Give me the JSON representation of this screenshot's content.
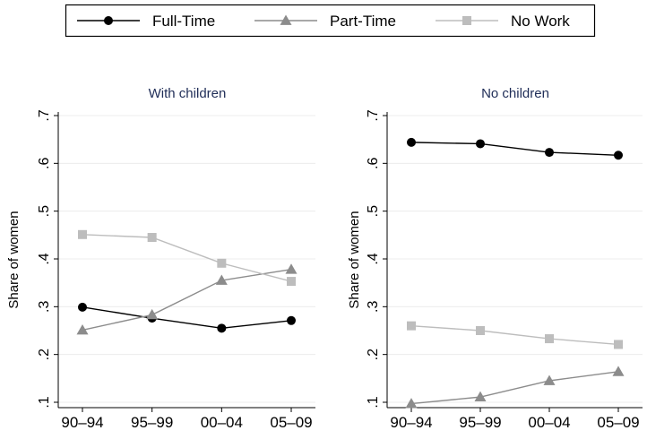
{
  "legend": {
    "items": [
      {
        "label": "Full-Time",
        "color": "#000000",
        "marker": "circle"
      },
      {
        "label": "Part-Time",
        "color": "#8c8c8c",
        "marker": "triangle"
      },
      {
        "label": "No Work",
        "color": "#bdbdbd",
        "marker": "square"
      }
    ]
  },
  "chart_data": [
    {
      "type": "line",
      "title": "With children",
      "ylabel": "Share of women",
      "xlabel": "",
      "categories": [
        "90–94",
        "95–99",
        "00–04",
        "05–09"
      ],
      "ylim": [
        0.1,
        0.7
      ],
      "yticks": [
        0.1,
        0.2,
        0.3,
        0.4,
        0.5,
        0.6,
        0.7
      ],
      "ytick_labels": [
        ".1",
        ".2",
        ".3",
        ".4",
        ".5",
        ".6",
        ".7"
      ],
      "grid": true,
      "series": [
        {
          "name": "Full-Time",
          "values": [
            0.299,
            0.276,
            0.255,
            0.271
          ]
        },
        {
          "name": "Part-Time",
          "values": [
            0.251,
            0.283,
            0.355,
            0.378
          ]
        },
        {
          "name": "No Work",
          "values": [
            0.451,
            0.445,
            0.391,
            0.353
          ]
        }
      ]
    },
    {
      "type": "line",
      "title": "No children",
      "ylabel": "Share of women",
      "xlabel": "",
      "categories": [
        "90–94",
        "95–99",
        "00–04",
        "05–09"
      ],
      "ylim": [
        0.1,
        0.7
      ],
      "yticks": [
        0.1,
        0.2,
        0.3,
        0.4,
        0.5,
        0.6,
        0.7
      ],
      "ytick_labels": [
        ".1",
        ".2",
        ".3",
        ".4",
        ".5",
        ".6",
        ".7"
      ],
      "grid": true,
      "series": [
        {
          "name": "Full-Time",
          "values": [
            0.644,
            0.641,
            0.623,
            0.617
          ]
        },
        {
          "name": "Part-Time",
          "values": [
            0.097,
            0.111,
            0.145,
            0.164
          ]
        },
        {
          "name": "No Work",
          "values": [
            0.26,
            0.25,
            0.233,
            0.221
          ]
        }
      ]
    }
  ]
}
